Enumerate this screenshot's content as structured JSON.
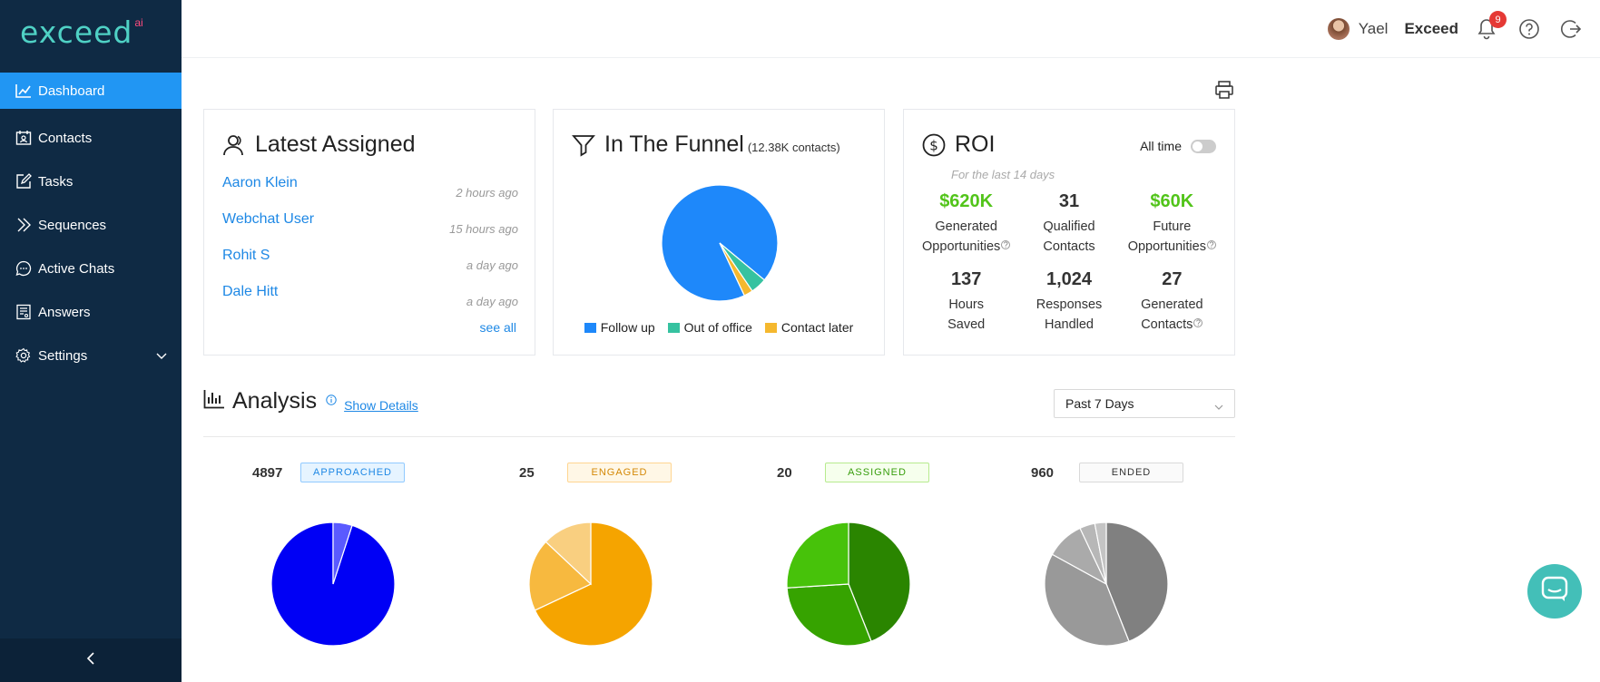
{
  "brand": {
    "logo_text": "exceed",
    "logo_suffix": "ai",
    "accent": "#2196f3",
    "sidebar_bg": "#0f2a44"
  },
  "sidebar": {
    "items": [
      {
        "label": "Dashboard",
        "icon": "chart-icon",
        "active": true
      },
      {
        "label": "Contacts",
        "icon": "contacts-icon"
      },
      {
        "label": "Tasks",
        "icon": "edit-icon"
      },
      {
        "label": "Sequences",
        "icon": "double-chevron-icon"
      },
      {
        "label": "Active Chats",
        "icon": "chat-icon"
      },
      {
        "label": "Answers",
        "icon": "answers-icon"
      },
      {
        "label": "Settings",
        "icon": "gear-icon"
      }
    ],
    "collapse_glyph": "<"
  },
  "header": {
    "user_name": "Yael",
    "org_name": "Exceed",
    "notification_count": "9"
  },
  "latest_assigned": {
    "title": "Latest Assigned",
    "rows": [
      {
        "name": "Aaron Klein",
        "time": "2 hours ago"
      },
      {
        "name": "Webchat User",
        "time": "15 hours ago"
      },
      {
        "name": "Rohit S",
        "time": "a day ago"
      },
      {
        "name": "Dale Hitt",
        "time": "a day ago"
      }
    ],
    "see_all": "see all"
  },
  "funnel": {
    "title": "In The Funnel",
    "subtitle": "(12.38K contacts)",
    "legend": [
      "Follow up",
      "Out of office",
      "Contact later"
    ]
  },
  "roi": {
    "title": "ROI",
    "toggle_label": "All time",
    "toggle_on": false,
    "period": "For the last 14 days",
    "metrics": [
      {
        "value": "$620K",
        "line1": "Generated",
        "line2": "Opportunities",
        "green": true,
        "info": true
      },
      {
        "value": "31",
        "line1": "Qualified",
        "line2": "Contacts",
        "green": false,
        "info": false
      },
      {
        "value": "$60K",
        "line1": "Future",
        "line2": "Opportunities",
        "green": true,
        "info": true
      },
      {
        "value": "137",
        "line1": "Hours",
        "line2": "Saved",
        "green": false,
        "info": false
      },
      {
        "value": "1,024",
        "line1": "Responses",
        "line2": "Handled",
        "green": false,
        "info": false
      },
      {
        "value": "27",
        "line1": "Generated",
        "line2": "Contacts",
        "green": false,
        "info": true
      }
    ]
  },
  "analysis": {
    "title": "Analysis",
    "show_details": "Show Details",
    "range": "Past 7 Days",
    "stats": [
      {
        "count": "4897",
        "label": "APPROACHED"
      },
      {
        "count": "25",
        "label": "ENGAGED"
      },
      {
        "count": "20",
        "label": "ASSIGNED"
      },
      {
        "count": "960",
        "label": "ENDED"
      }
    ]
  },
  "chart_data": [
    {
      "type": "pie",
      "title": "In The Funnel",
      "categories": [
        "Follow up",
        "Out of office",
        "Contact later"
      ],
      "values": [
        93,
        4.5,
        2.5
      ],
      "colors": [
        "#1e88fa",
        "#36c2a0",
        "#f5b82e"
      ]
    },
    {
      "type": "pie",
      "title": "APPROACHED",
      "values": [
        95,
        5
      ],
      "colors": [
        "#0000f5",
        "#5a5aff"
      ]
    },
    {
      "type": "pie",
      "title": "ENGAGED",
      "values": [
        68,
        19,
        13
      ],
      "colors": [
        "#f5a400",
        "#f7b93f",
        "#f9cf80"
      ]
    },
    {
      "type": "pie",
      "title": "ASSIGNED",
      "values": [
        44,
        30,
        26
      ],
      "colors": [
        "#2a8500",
        "#36a300",
        "#47c20a"
      ]
    },
    {
      "type": "pie",
      "title": "ENDED",
      "values": [
        44,
        39,
        10,
        4,
        3
      ],
      "colors": [
        "#808080",
        "#999999",
        "#aaaaaa",
        "#b7b7b7",
        "#c4c4c4"
      ]
    }
  ],
  "chat_widget": {
    "icon": "chat-bubble-icon"
  }
}
